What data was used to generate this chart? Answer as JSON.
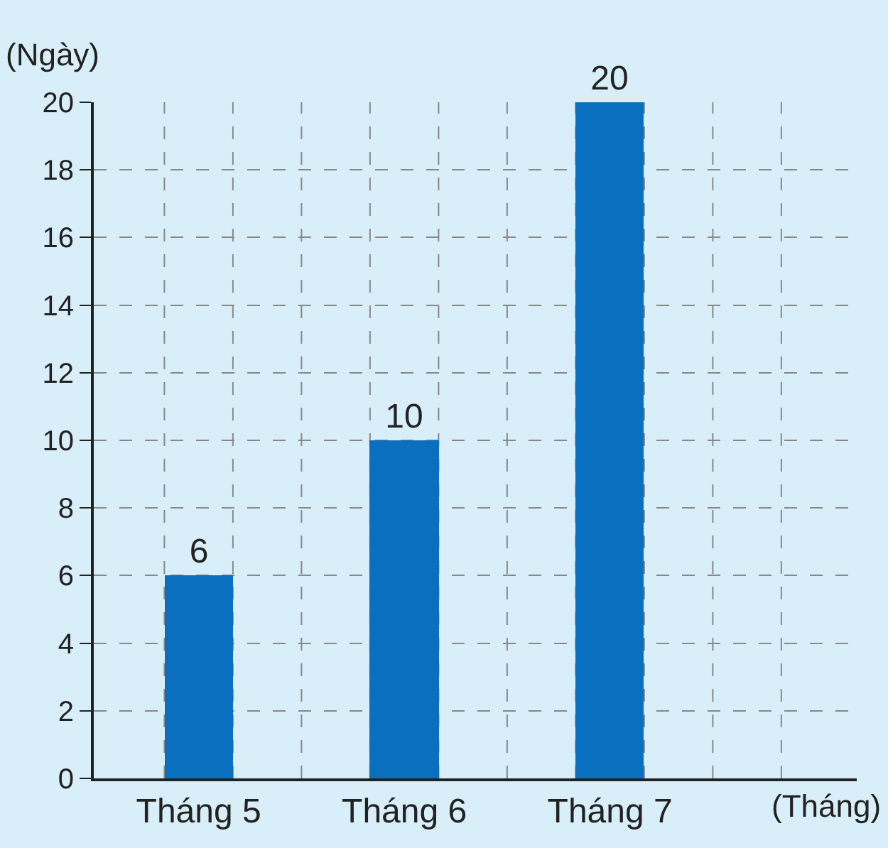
{
  "chart_data": {
    "type": "bar",
    "categories": [
      "Tháng 5",
      "Tháng 6",
      "Tháng 7"
    ],
    "values": [
      6,
      10,
      20
    ],
    "color": "#0b6fbf",
    "xlabel": "(Tháng)",
    "ylabel": "(Ngày)",
    "ylim": [
      0,
      20
    ],
    "yticks": [
      0,
      2,
      4,
      6,
      8,
      10,
      12,
      14,
      16,
      18,
      20
    ],
    "grid": true,
    "data_labels": true,
    "legend": false
  }
}
